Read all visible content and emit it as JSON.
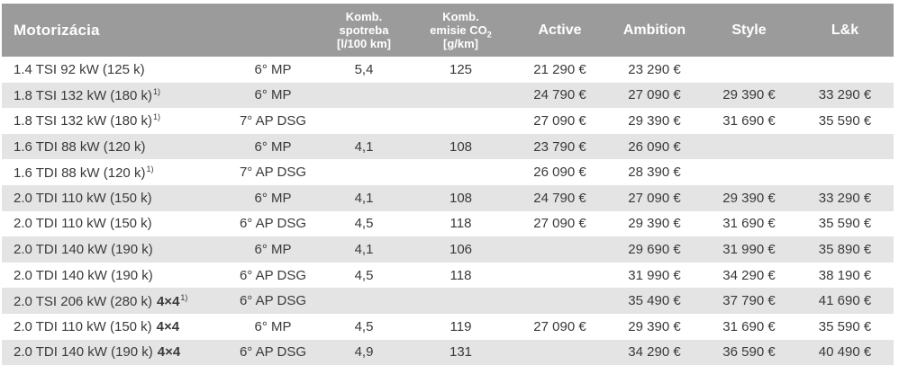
{
  "colors": {
    "header_bg": "#9b9b9b",
    "header_text": "#ffffff",
    "stripe_bg": "#e4e4e4",
    "row_bg": "#ffffff",
    "body_text": "#3a3a3a"
  },
  "table": {
    "header": {
      "engine": "Motorizácia",
      "consumption": {
        "line1": "Komb.",
        "line2": "spotreba",
        "line3": "[l/100 km]"
      },
      "emissions": {
        "line1": "Komb.",
        "line2_main": "emisie CO",
        "line2_sub": "2",
        "line3": "[g/km]"
      },
      "trims": [
        "Active",
        "Ambition",
        "Style",
        "L&k"
      ]
    },
    "rows": [
      {
        "engine": "1.4 TSI 92 kW (125 k)",
        "awd": "",
        "footnote": "",
        "transmission": "6° MP",
        "consumption": "5,4",
        "emissions": "125",
        "active": "21 290 €",
        "ambition": "23 290 €",
        "style": "",
        "lk": ""
      },
      {
        "engine": "1.8 TSI 132 kW (180 k)",
        "awd": "",
        "footnote": "1)",
        "transmission": "6° MP",
        "consumption": "",
        "emissions": "",
        "active": "24 790 €",
        "ambition": "27 090 €",
        "style": "29 390 €",
        "lk": "33 290 €"
      },
      {
        "engine": "1.8 TSI 132 kW (180 k)",
        "awd": "",
        "footnote": "1)",
        "transmission": "7° AP DSG",
        "consumption": "",
        "emissions": "",
        "active": "27 090 €",
        "ambition": "29 390 €",
        "style": "31 690 €",
        "lk": "35 590 €"
      },
      {
        "engine": "1.6 TDI 88 kW (120 k)",
        "awd": "",
        "footnote": "",
        "transmission": "6° MP",
        "consumption": "4,1",
        "emissions": "108",
        "active": "23 790 €",
        "ambition": "26 090 €",
        "style": "",
        "lk": ""
      },
      {
        "engine": "1.6 TDI 88 kW (120 k)",
        "awd": "",
        "footnote": "1)",
        "transmission": "7° AP DSG",
        "consumption": "",
        "emissions": "",
        "active": "26 090 €",
        "ambition": "28 390 €",
        "style": "",
        "lk": ""
      },
      {
        "engine": "2.0 TDI 110 kW (150 k)",
        "awd": "",
        "footnote": "",
        "transmission": "6° MP",
        "consumption": "4,1",
        "emissions": "108",
        "active": "24 790 €",
        "ambition": "27 090 €",
        "style": "29 390 €",
        "lk": "33 290 €"
      },
      {
        "engine": "2.0 TDI 110 kW (150 k)",
        "awd": "",
        "footnote": "",
        "transmission": "6° AP DSG",
        "consumption": "4,5",
        "emissions": "118",
        "active": "27 090 €",
        "ambition": "29 390 €",
        "style": "31 690 €",
        "lk": "35 590 €"
      },
      {
        "engine": "2.0 TDI 140 kW (190 k)",
        "awd": "",
        "footnote": "",
        "transmission": "6° MP",
        "consumption": "4,1",
        "emissions": "106",
        "active": "",
        "ambition": "29 690 €",
        "style": "31 990 €",
        "lk": "35 890 €"
      },
      {
        "engine": "2.0 TDI 140 kW (190 k)",
        "awd": "",
        "footnote": "",
        "transmission": "6° AP DSG",
        "consumption": "4,5",
        "emissions": "118",
        "active": "",
        "ambition": "31 990 €",
        "style": "34 290 €",
        "lk": "38 190 €"
      },
      {
        "engine": "2.0 TSI 206 kW (280 k)",
        "awd": "4×4",
        "footnote": "1)",
        "transmission": "6° AP DSG",
        "consumption": "",
        "emissions": "",
        "active": "",
        "ambition": "35 490 €",
        "style": "37 790 €",
        "lk": "41 690 €"
      },
      {
        "engine": "2.0 TDI 110 kW (150 k)",
        "awd": "4×4",
        "footnote": "",
        "transmission": "6° MP",
        "consumption": "4,5",
        "emissions": "119",
        "active": "27 090 €",
        "ambition": "29 390 €",
        "style": "31 690 €",
        "lk": "35 590 €"
      },
      {
        "engine": "2.0 TDI 140 kW (190 k)",
        "awd": "4×4",
        "footnote": "",
        "transmission": "6° AP DSG",
        "consumption": "4,9",
        "emissions": "131",
        "active": "",
        "ambition": "34 290 €",
        "style": "36 590 €",
        "lk": "40 490 €"
      }
    ]
  }
}
